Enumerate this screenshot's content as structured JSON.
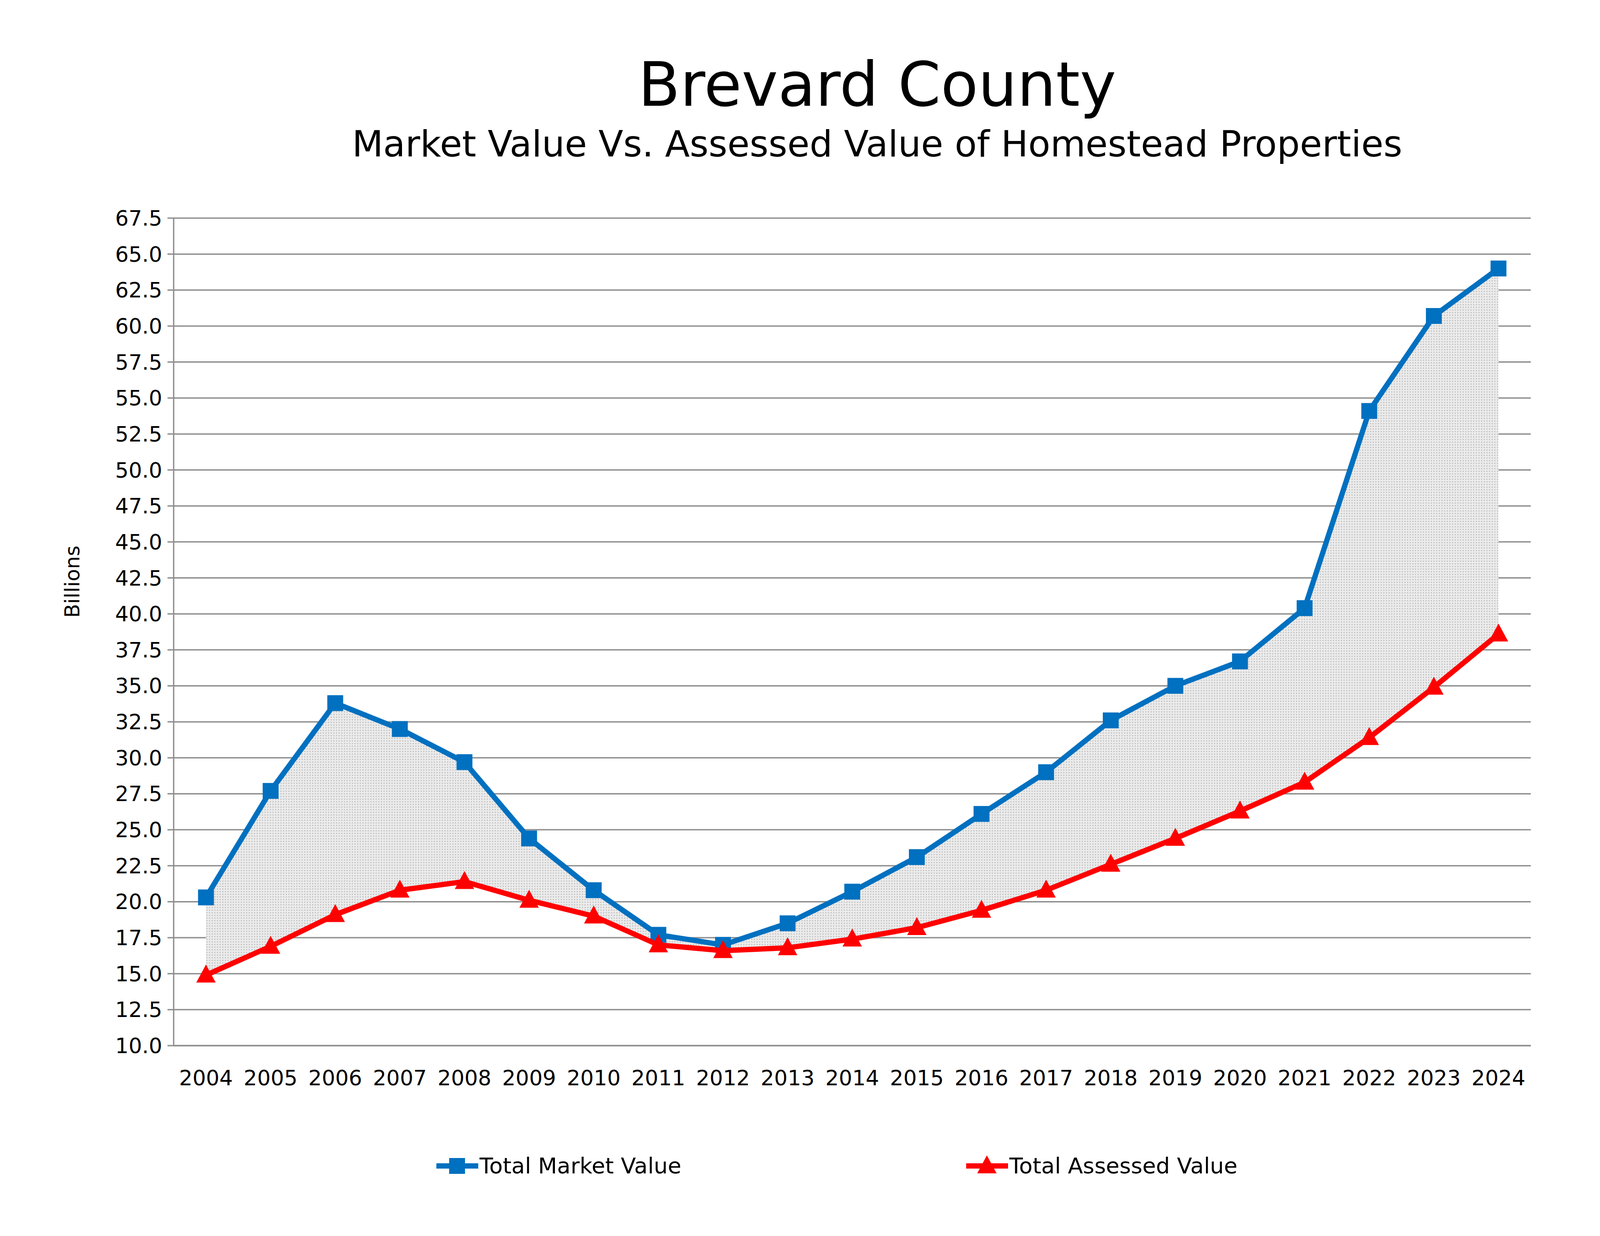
{
  "chart_data": {
    "type": "line",
    "title": "Brevard County",
    "subtitle": "Market Value Vs. Assessed Value of Homestead Properties",
    "y_label": "Billions",
    "categories": [
      "2004",
      "2005",
      "2006",
      "2007",
      "2008",
      "2009",
      "2010",
      "2011",
      "2012",
      "2013",
      "2014",
      "2015",
      "2016",
      "2017",
      "2018",
      "2019",
      "2020",
      "2021",
      "2022",
      "2023",
      "2024"
    ],
    "series": [
      {
        "name": "Total Market Value",
        "color": "#0070c0",
        "marker": "square",
        "values": [
          20.3,
          27.7,
          33.8,
          32.0,
          29.7,
          24.4,
          20.8,
          17.7,
          17.0,
          18.5,
          20.7,
          23.1,
          26.1,
          29.0,
          32.6,
          35.0,
          36.7,
          40.4,
          54.1,
          60.7,
          64.0
        ]
      },
      {
        "name": "Total Assessed Value",
        "color": "#ff0000",
        "marker": "triangle",
        "values": [
          14.9,
          16.9,
          19.1,
          20.8,
          21.4,
          20.1,
          19.0,
          17.0,
          16.6,
          16.8,
          17.4,
          18.2,
          19.4,
          20.8,
          22.6,
          24.4,
          26.3,
          28.3,
          31.4,
          34.9,
          38.6
        ]
      }
    ],
    "ylim": [
      10,
      67.5
    ],
    "yticks": [
      {
        "value": 10,
        "label": "10.0"
      },
      12.5,
      {
        "value": 15,
        "label": "15.0"
      },
      17.5,
      {
        "value": 20,
        "label": "20.0"
      },
      22.5,
      {
        "value": 25,
        "label": "25.0"
      },
      27.5,
      {
        "value": 30,
        "label": "30.0"
      },
      32.5,
      {
        "value": 35,
        "label": "35.0"
      },
      37.5,
      {
        "value": 40,
        "label": "40.0"
      },
      42.5,
      {
        "value": 45,
        "label": "45.0"
      },
      47.5,
      {
        "value": 50,
        "label": "50.0"
      },
      52.5,
      {
        "value": 55,
        "label": "55.0"
      },
      57.5,
      {
        "value": 60,
        "label": "60.0"
      },
      62.5,
      {
        "value": 65,
        "label": "65.0"
      },
      67.5
    ],
    "grid": true,
    "legend": "bottom"
  }
}
